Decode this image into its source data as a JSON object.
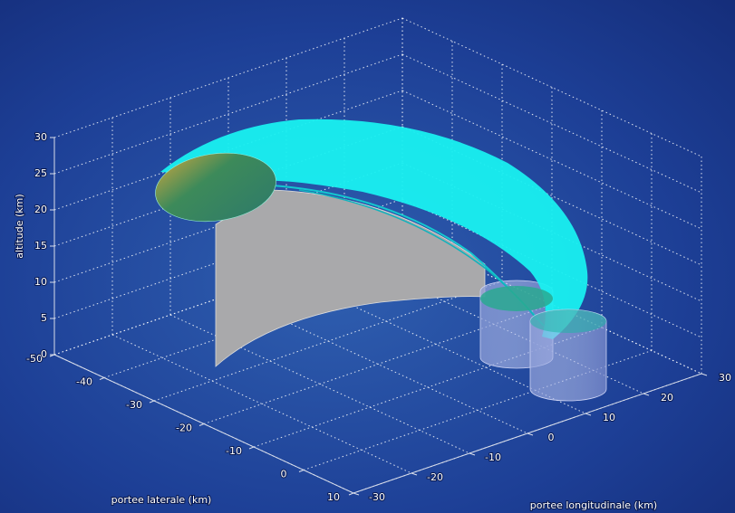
{
  "chart_data": {
    "type": "3d-trajectory",
    "xlabel": "portee laterale (km)",
    "ylabel": "portee longitudinale (km)",
    "zlabel": "altitude (km)",
    "xlim": [
      -50,
      10
    ],
    "xticks": [
      -50,
      -40,
      -30,
      -20,
      -10,
      0,
      10
    ],
    "ylim": [
      -30,
      30
    ],
    "yticks": [
      -30,
      -20,
      -10,
      0,
      10,
      20,
      30
    ],
    "zlim": [
      0,
      30
    ],
    "zticks": [
      0,
      5,
      10,
      15,
      20,
      25,
      30
    ],
    "grid": true
  }
}
